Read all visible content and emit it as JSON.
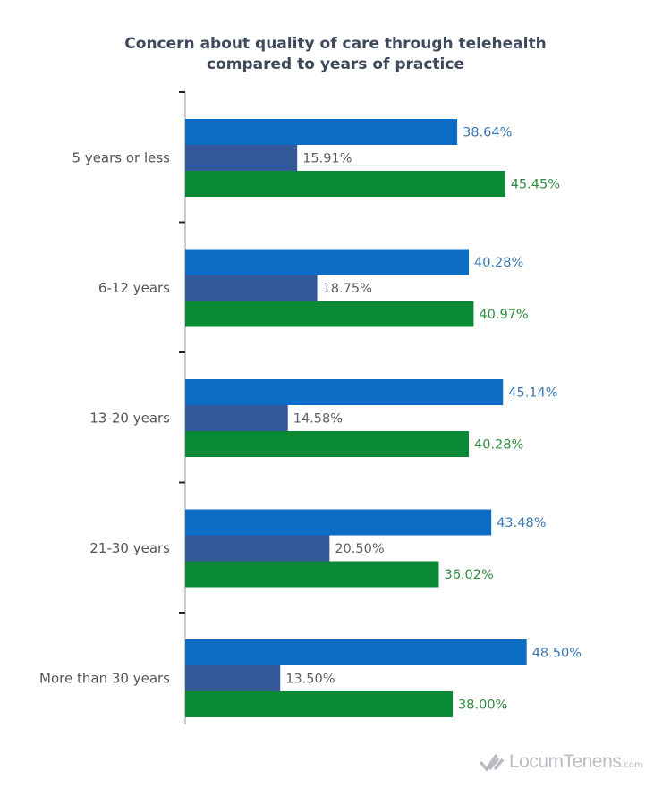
{
  "chart_data": {
    "type": "bar",
    "orientation": "horizontal",
    "title": [
      "Concern about quality of care through telehealth",
      "compared to years of practice"
    ],
    "xlabel": "",
    "ylabel": "",
    "xlim": [
      0,
      50
    ],
    "grid": false,
    "legend": "none",
    "categories": [
      "5 years or less",
      "6-12 years",
      "13-20 years",
      "21-30 years",
      "More than 30 years"
    ],
    "series": [
      {
        "color": "#0b6dc6",
        "label_color": "#3b78b0",
        "values": [
          38.64,
          40.28,
          45.14,
          43.48,
          48.5
        ],
        "labels": [
          "38.64%",
          "40.28%",
          "45.14%",
          "43.48%",
          "48.50%"
        ]
      },
      {
        "color": "#34599a",
        "label_color": "#5a5f66",
        "values": [
          15.91,
          18.75,
          14.58,
          20.5,
          13.5
        ],
        "labels": [
          "15.91%",
          "18.75%",
          "14.58%",
          "20.50%",
          "13.50%"
        ]
      },
      {
        "color": "#0a8a34",
        "label_color": "#2f8a3f",
        "values": [
          45.45,
          40.97,
          40.28,
          36.02,
          38.0
        ],
        "labels": [
          "45.45%",
          "40.97%",
          "40.28%",
          "36.02%",
          "38.00%"
        ]
      }
    ]
  },
  "logo": {
    "name": "LocumTenens",
    "domain": ".com"
  }
}
